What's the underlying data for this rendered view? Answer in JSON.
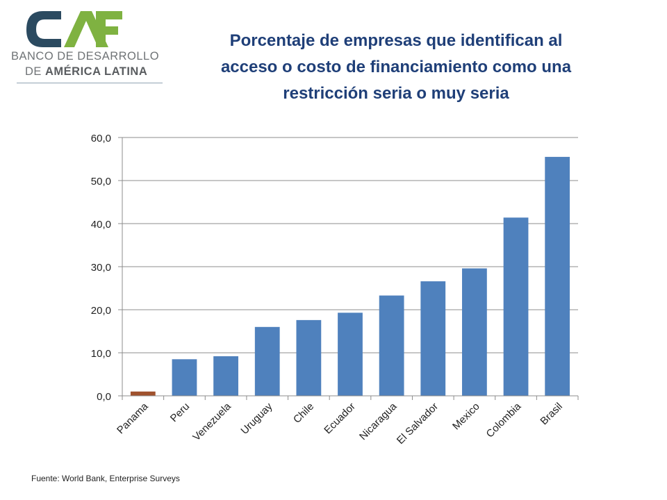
{
  "logo": {
    "mark": "CAF",
    "line1": "BANCO DE DESARROLLO",
    "line2_prefix": "DE ",
    "line2_bold": "AMÉRICA LATINA",
    "colors": {
      "c": "#2b4a60",
      "a": "#7fb241",
      "f": "#7fb241"
    }
  },
  "title": "Porcentaje de empresas que identifican al acceso o costo de financiamiento como una restricción seria o muy seria",
  "chart_data": {
    "type": "bar",
    "title": "Porcentaje de empresas que identifican al acceso o costo de financiamiento como una restricción seria o muy seria",
    "xlabel": "",
    "ylabel": "",
    "categories": [
      "Panama",
      "Peru",
      "Venezuela",
      "Uruguay",
      "Chile",
      "Ecuador",
      "Nicaragua",
      "El Salvador",
      "Mexico",
      "Colombia",
      "Brasil"
    ],
    "values": [
      1.0,
      8.5,
      9.2,
      16.0,
      17.6,
      19.3,
      23.3,
      26.6,
      29.6,
      41.4,
      55.5
    ],
    "highlight": "Panama",
    "ylim": [
      0,
      60
    ],
    "yticks": [
      "0,0",
      "10,0",
      "20,0",
      "30,0",
      "40,0",
      "50,0",
      "60,0"
    ],
    "grid": true,
    "legend": "none",
    "colors": {
      "bar": "#4f81bd",
      "highlight": "#a0522d",
      "grid": "#8c8c8c"
    }
  },
  "footer": "Fuente: World Bank, Enterprise Surveys"
}
